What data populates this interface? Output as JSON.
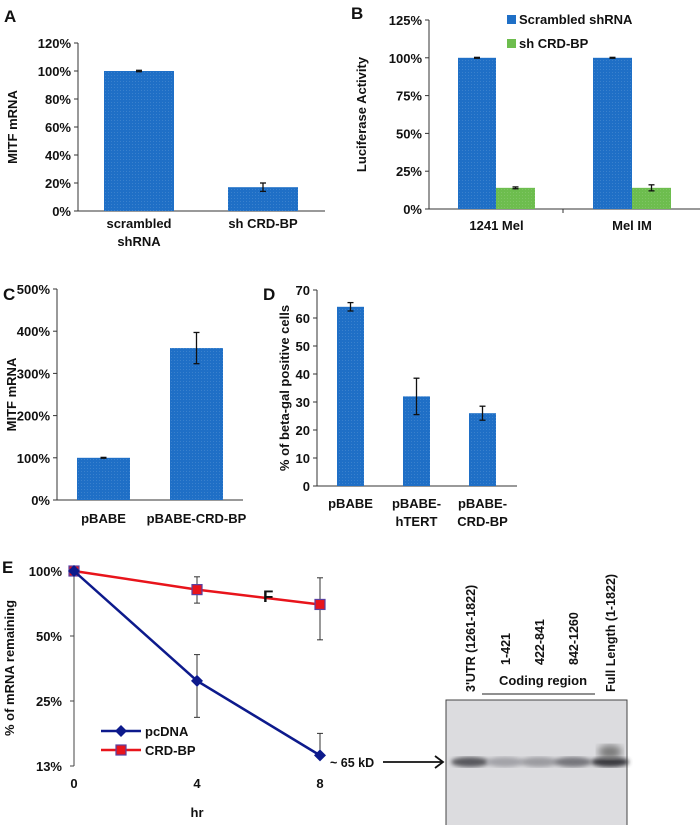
{
  "colors": {
    "blue": "#1f6fc6",
    "green": "#6dbd4e",
    "red": "#e8141b",
    "navy": "#0d1a8c",
    "marker_edge": "#5a3fa0"
  },
  "chart_data": [
    {
      "panel": "A",
      "type": "bar",
      "ylabel": "MITF mRNA",
      "ylim": [
        0,
        120
      ],
      "yticks": [
        0,
        20,
        40,
        60,
        80,
        100,
        120
      ],
      "ytick_labels": [
        "0%",
        "20%",
        "40%",
        "60%",
        "80%",
        "100%",
        "120%"
      ],
      "categories": [
        [
          "scrambled",
          "shRNA"
        ],
        [
          "sh CRD-BP"
        ]
      ],
      "series": [
        {
          "name": "",
          "values": [
            100,
            17
          ],
          "errors": [
            0.5,
            3
          ]
        }
      ]
    },
    {
      "panel": "B",
      "type": "bar",
      "ylabel": "Luciferase Activity",
      "ylim": [
        0,
        125
      ],
      "yticks": [
        0,
        25,
        50,
        75,
        100,
        125
      ],
      "ytick_labels": [
        "0%",
        "25%",
        "50%",
        "75%",
        "100%",
        "125%"
      ],
      "categories": [
        [
          "1241 Mel"
        ],
        [
          "Mel IM"
        ]
      ],
      "legend": "top-right",
      "series": [
        {
          "name": "Scrambled shRNA",
          "values": [
            100,
            100
          ],
          "errors": [
            0.3,
            0.3
          ]
        },
        {
          "name": "sh CRD-BP",
          "values": [
            14,
            14
          ],
          "errors": [
            0.6,
            2
          ]
        }
      ]
    },
    {
      "panel": "C",
      "type": "bar",
      "ylabel": "MITF mRNA",
      "ylim": [
        0,
        500
      ],
      "yticks": [
        0,
        100,
        200,
        300,
        400,
        500
      ],
      "ytick_labels": [
        "0%",
        "100%",
        "200%",
        "300%",
        "400%",
        "500%"
      ],
      "categories": [
        [
          "pBABE"
        ],
        [
          "pBABE-CRD-BP"
        ]
      ],
      "series": [
        {
          "name": "",
          "values": [
            100,
            360
          ],
          "errors": [
            1,
            37
          ]
        }
      ]
    },
    {
      "panel": "D",
      "type": "bar",
      "ylabel": "% of beta-gal positive cells",
      "ylim": [
        0,
        70
      ],
      "yticks": [
        0,
        10,
        20,
        30,
        40,
        50,
        60,
        70
      ],
      "ytick_labels": [
        "0",
        "10",
        "20",
        "30",
        "40",
        "50",
        "60",
        "70"
      ],
      "categories": [
        [
          "pBABE"
        ],
        [
          "pBABE-",
          "hTERT"
        ],
        [
          "pBABE-",
          "CRD-BP"
        ]
      ],
      "series": [
        {
          "name": "",
          "values": [
            64,
            32,
            26
          ],
          "errors": [
            1.5,
            6.5,
            2.5
          ]
        }
      ]
    },
    {
      "panel": "E",
      "type": "line",
      "yscale": "log2",
      "xlabel": "hr",
      "ylabel": "% of mRNA remaining",
      "x": [
        0,
        4,
        8
      ],
      "xtick_labels": [
        "0",
        "4",
        "8"
      ],
      "ylim": [
        12.5,
        100
      ],
      "yticks": [
        12.5,
        25,
        50,
        100
      ],
      "ytick_labels": [
        "13%",
        "25%",
        "50%",
        "100%"
      ],
      "legend": "bottom-left",
      "series": [
        {
          "name": "pcDNA",
          "marker": "diamond",
          "values": [
            100,
            31,
            14
          ],
          "err_low": [
            100,
            21,
            14
          ],
          "err_high": [
            100,
            41,
            17.7
          ]
        },
        {
          "name": "CRD-BP",
          "marker": "square",
          "values": [
            100,
            82,
            70
          ],
          "err_low": [
            100,
            71,
            48
          ],
          "err_high": [
            100,
            94,
            93
          ]
        }
      ]
    }
  ],
  "blot": {
    "panel": "F",
    "lane_labels": [
      "3'UTR (1261-1822)",
      "1-421",
      "422-841",
      "842-1260",
      "Full Length (1-1822)"
    ],
    "group_label": "Coding region",
    "marker_label": "~ 65 kD",
    "band_intensity": [
      0.75,
      0.25,
      0.3,
      0.55,
      0.95
    ]
  }
}
